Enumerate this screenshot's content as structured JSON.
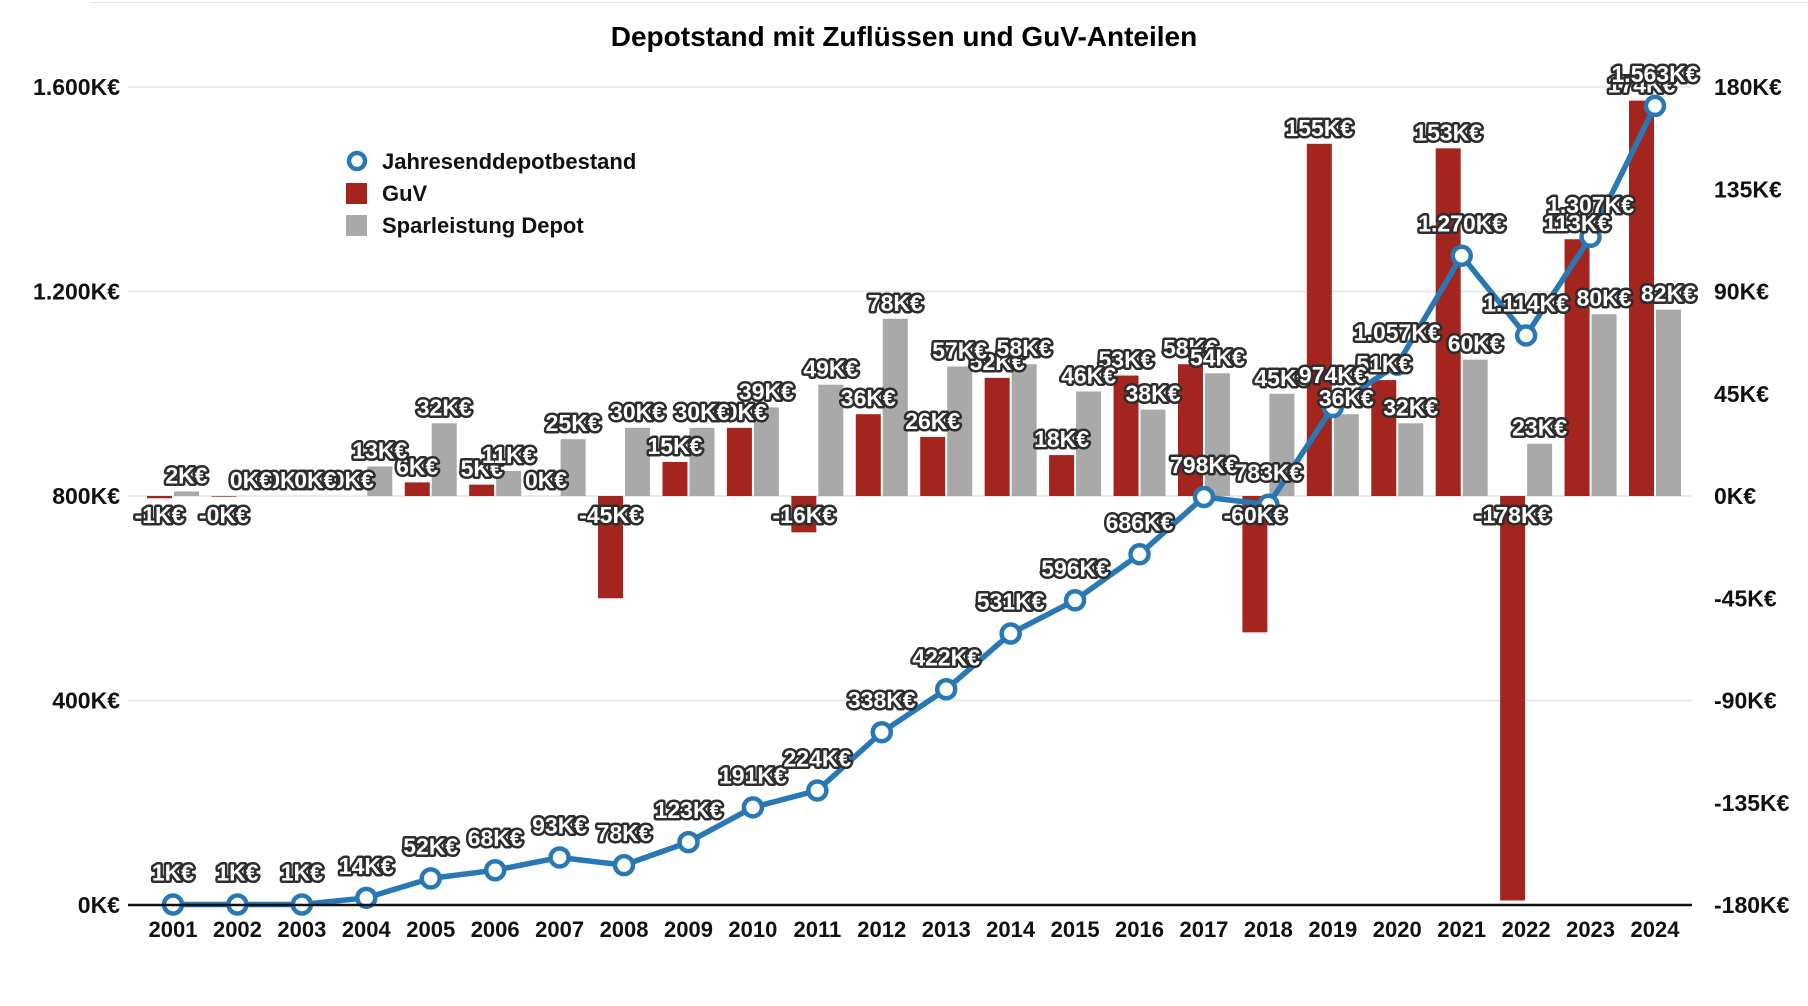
{
  "page": {
    "background": "#ffffff"
  },
  "chart_data": {
    "type": "combo",
    "title": "Depotstand mit Zuflüssen und GuV-Anteilen",
    "units": "K€",
    "grid": "horizontal",
    "legend_position": "upper-left-inside",
    "categories": [
      "2001",
      "2002",
      "2003",
      "2004",
      "2005",
      "2006",
      "2007",
      "2008",
      "2009",
      "2010",
      "2011",
      "2012",
      "2013",
      "2014",
      "2015",
      "2016",
      "2017",
      "2018",
      "2019",
      "2020",
      "2021",
      "2022",
      "2023",
      "2024"
    ],
    "left_axis": {
      "min": 0,
      "max": 1600,
      "step": 400,
      "tick_labels": [
        "0K€",
        "400K€",
        "800K€",
        "1.200K€",
        "1.600K€"
      ],
      "applies_to": "Jahresenddepotbestand"
    },
    "right_axis": {
      "min": -180,
      "max": 180,
      "step": 45,
      "tick_labels": [
        "-180K€",
        "-135K€",
        "-90K€",
        "-45K€",
        "0K€",
        "45K€",
        "90K€",
        "135K€",
        "180K€"
      ],
      "applies_to": "GuV, Sparleistung Depot"
    },
    "series": [
      {
        "name": "Jahresenddepotbestand",
        "type": "line",
        "axis": "left",
        "color": "#2878b5",
        "marker": "open-circle",
        "values": [
          1,
          1,
          1,
          14,
          52,
          68,
          93,
          78,
          123,
          191,
          224,
          338,
          422,
          531,
          596,
          686,
          798,
          783,
          974,
          1057,
          1270,
          1114,
          1307,
          1563
        ],
        "labels": [
          "1K€",
          "1K€",
          "1K€",
          "14K€",
          "52K€",
          "68K€",
          "93K€",
          "78K€",
          "123K€",
          "191K€",
          "224K€",
          "338K€",
          "422K€",
          "531K€",
          "596K€",
          "686K€",
          "798K€",
          "783K€",
          "974K€",
          "1.057K€",
          "1.270K€",
          "1.114K€",
          "1.307K€",
          "1.563K€"
        ]
      },
      {
        "name": "GuV",
        "type": "bar",
        "axis": "right",
        "color": "#a4241e",
        "values": [
          -1,
          -0.3,
          0,
          0,
          6,
          5,
          0,
          -45,
          15,
          30,
          -16,
          36,
          26,
          52,
          18,
          53,
          58,
          -60,
          155,
          51,
          153,
          -178,
          113,
          174
        ],
        "labels": [
          "-1K€",
          "-0K€",
          "0K€",
          "0K€",
          "6K€",
          "5K€",
          "0K€",
          "-45K€",
          "15K€",
          "30K€",
          "-16K€",
          "36K€",
          "26K€",
          "52K€",
          "18K€",
          "53K€",
          "58K€",
          "-60K€",
          "155K€",
          "51K€",
          "153K€",
          "-178K€",
          "113K€",
          "174K€"
        ]
      },
      {
        "name": "Sparleistung Depot",
        "type": "bar",
        "axis": "right",
        "color": "#a9a9a9",
        "values": [
          2,
          0,
          0,
          13,
          32,
          11,
          25,
          30,
          30,
          39,
          49,
          78,
          57,
          58,
          46,
          38,
          54,
          45,
          36,
          32,
          60,
          23,
          80,
          82
        ],
        "labels": [
          "2K€",
          "0K€",
          "0K€",
          "13K€",
          "32K€",
          "11K€",
          "25K€",
          "30K€",
          "30K€",
          "39K€",
          "49K€",
          "78K€",
          "57K€",
          "58K€",
          "46K€",
          "38K€",
          "54K€",
          "45K€",
          "36K€",
          "32K€",
          "60K€",
          "23K€",
          "80K€",
          "82K€"
        ]
      }
    ],
    "label_style": {
      "fill": "#ffffff",
      "outline": "#2d2d2d"
    }
  }
}
